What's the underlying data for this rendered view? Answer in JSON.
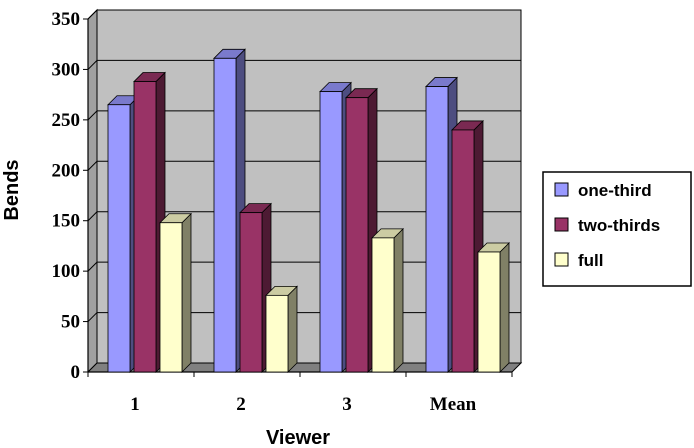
{
  "chart_data": {
    "type": "bar",
    "style": "3d-clustered-column",
    "categories": [
      "1",
      "2",
      "3",
      "Mean"
    ],
    "series": [
      {
        "name": "one-third",
        "values": [
          265,
          311,
          278,
          283
        ],
        "color": "#9999ff"
      },
      {
        "name": "two-thirds",
        "values": [
          288,
          158,
          272,
          240
        ],
        "color": "#993366"
      },
      {
        "name": "full",
        "values": [
          148,
          76,
          133,
          119
        ],
        "color": "#ffffcc"
      }
    ],
    "xlabel": "Viewer",
    "ylabel": "Bends",
    "ylim": [
      0,
      350
    ],
    "yticks": [
      0,
      50,
      100,
      150,
      200,
      250,
      300,
      350
    ],
    "grid": true,
    "legend": "right",
    "wall_color": "#c0c0c0",
    "floor_color": "#808080"
  }
}
